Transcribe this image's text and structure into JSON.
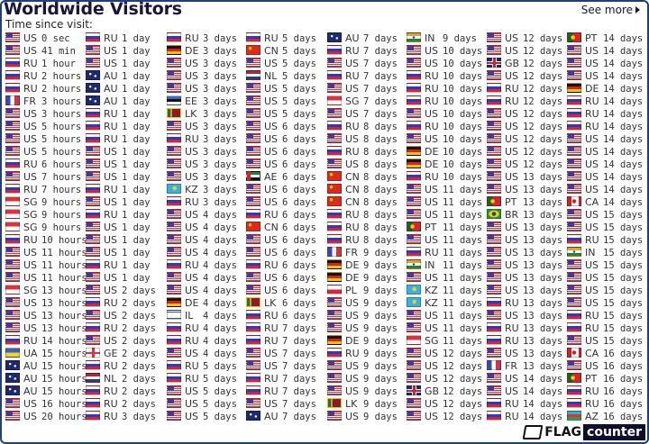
{
  "header": {
    "title": "Worldwide Visitors",
    "subtitle": "Time since visit:",
    "see_more": "See more"
  },
  "logo": {
    "text_flag": "FLAG",
    "text_counter": "counter"
  },
  "columns": [
    [
      [
        "US",
        "0 sec"
      ],
      [
        "US",
        "41 min"
      ],
      [
        "RU",
        "1 hour"
      ],
      [
        "RU",
        "2 hours"
      ],
      [
        "RU",
        "2 hours"
      ],
      [
        "FR",
        "3 hours"
      ],
      [
        "US",
        "3 hours"
      ],
      [
        "US",
        "5 hours"
      ],
      [
        "US",
        "5 hours"
      ],
      [
        "US",
        "5 hours"
      ],
      [
        "RU",
        "6 hours"
      ],
      [
        "US",
        "7 hours"
      ],
      [
        "RU",
        "7 hours"
      ],
      [
        "SG",
        "9 hours"
      ],
      [
        "SG",
        "9 hours"
      ],
      [
        "SG",
        "9 hours"
      ],
      [
        "RU",
        "10 hours"
      ],
      [
        "US",
        "11 hours"
      ],
      [
        "US",
        "11 hours"
      ],
      [
        "US",
        "11 hours"
      ],
      [
        "SG",
        "13 hours"
      ],
      [
        "US",
        "13 hours"
      ],
      [
        "US",
        "13 hours"
      ],
      [
        "US",
        "13 hours"
      ],
      [
        "RU",
        "14 hours"
      ],
      [
        "UA",
        "15 hours"
      ],
      [
        "AU",
        "15 hours"
      ],
      [
        "AU",
        "15 hours"
      ],
      [
        "AU",
        "15 hours"
      ],
      [
        "US",
        "16 hours"
      ],
      [
        "US",
        "20 hours"
      ]
    ],
    [
      [
        "RU",
        "1 day"
      ],
      [
        "US",
        "1 day"
      ],
      [
        "US",
        "1 day"
      ],
      [
        "AU",
        "1 day"
      ],
      [
        "AU",
        "1 day"
      ],
      [
        "AU",
        "1 day"
      ],
      [
        "RU",
        "1 day"
      ],
      [
        "RU",
        "1 day"
      ],
      [
        "RU",
        "1 day"
      ],
      [
        "US",
        "1 day"
      ],
      [
        "US",
        "1 day"
      ],
      [
        "US",
        "1 day"
      ],
      [
        "RU",
        "1 day"
      ],
      [
        "US",
        "1 day"
      ],
      [
        "RU",
        "1 day"
      ],
      [
        "US",
        "1 day"
      ],
      [
        "US",
        "1 day"
      ],
      [
        "US",
        "1 day"
      ],
      [
        "RU",
        "1 day"
      ],
      [
        "US",
        "1 day"
      ],
      [
        "US",
        "2 days"
      ],
      [
        "RU",
        "2 days"
      ],
      [
        "US",
        "2 days"
      ],
      [
        "RU",
        "2 days"
      ],
      [
        "US",
        "2 days"
      ],
      [
        "GE",
        "2 days"
      ],
      [
        "RU",
        "2 days"
      ],
      [
        "NL",
        "2 days"
      ],
      [
        "RU",
        "2 days"
      ],
      [
        "RU",
        "2 days"
      ],
      [
        "RU",
        "3 days"
      ]
    ],
    [
      [
        "RU",
        "3 days"
      ],
      [
        "DE",
        "3 days"
      ],
      [
        "US",
        "3 days"
      ],
      [
        "US",
        "3 days"
      ],
      [
        "US",
        "3 days"
      ],
      [
        "EE",
        "3 days"
      ],
      [
        "LK",
        "3 days"
      ],
      [
        "US",
        "3 days"
      ],
      [
        "RU",
        "3 days"
      ],
      [
        "US",
        "3 days"
      ],
      [
        "US",
        "3 days"
      ],
      [
        "US",
        "3 days"
      ],
      [
        "KZ",
        "3 days"
      ],
      [
        "RU",
        "3 days"
      ],
      [
        "US",
        "4 days"
      ],
      [
        "US",
        "4 days"
      ],
      [
        "US",
        "4 days"
      ],
      [
        "US",
        "4 days"
      ],
      [
        "RU",
        "4 days"
      ],
      [
        "US",
        "4 days"
      ],
      [
        "US",
        "4 days"
      ],
      [
        "DE",
        "4 days"
      ],
      [
        "IL",
        "4 days"
      ],
      [
        "RU",
        "4 days"
      ],
      [
        "RU",
        "4 days"
      ],
      [
        "US",
        "4 days"
      ],
      [
        "RU",
        "5 days"
      ],
      [
        "RU",
        "5 days"
      ],
      [
        "US",
        "5 days"
      ],
      [
        "US",
        "5 days"
      ],
      [
        "US",
        "5 days"
      ]
    ],
    [
      [
        "RU",
        "5 days"
      ],
      [
        "CN",
        "5 days"
      ],
      [
        "US",
        "5 days"
      ],
      [
        "NL",
        "5 days"
      ],
      [
        "US",
        "5 days"
      ],
      [
        "US",
        "5 days"
      ],
      [
        "US",
        "5 days"
      ],
      [
        "US",
        "6 days"
      ],
      [
        "US",
        "6 days"
      ],
      [
        "US",
        "6 days"
      ],
      [
        "US",
        "6 days"
      ],
      [
        "AE",
        "6 days"
      ],
      [
        "US",
        "6 days"
      ],
      [
        "US",
        "6 days"
      ],
      [
        "RU",
        "6 days"
      ],
      [
        "CN",
        "6 days"
      ],
      [
        "US",
        "6 days"
      ],
      [
        "US",
        "6 days"
      ],
      [
        "RU",
        "6 days"
      ],
      [
        "US",
        "6 days"
      ],
      [
        "US",
        "6 days"
      ],
      [
        "LK",
        "6 days"
      ],
      [
        "RU",
        "6 days"
      ],
      [
        "RU",
        "7 days"
      ],
      [
        "RU",
        "7 days"
      ],
      [
        "US",
        "7 days"
      ],
      [
        "US",
        "7 days"
      ],
      [
        "RU",
        "7 days"
      ],
      [
        "RU",
        "7 days"
      ],
      [
        "US",
        "7 days"
      ],
      [
        "AU",
        "7 days"
      ]
    ],
    [
      [
        "AU",
        "7 days"
      ],
      [
        "RU",
        "7 days"
      ],
      [
        "US",
        "7 days"
      ],
      [
        "RU",
        "7 days"
      ],
      [
        "US",
        "7 days"
      ],
      [
        "SG",
        "7 days"
      ],
      [
        "US",
        "7 days"
      ],
      [
        "RU",
        "8 days"
      ],
      [
        "US",
        "8 days"
      ],
      [
        "RU",
        "8 days"
      ],
      [
        "US",
        "8 days"
      ],
      [
        "CN",
        "8 days"
      ],
      [
        "CN",
        "8 days"
      ],
      [
        "CN",
        "8 days"
      ],
      [
        "RU",
        "8 days"
      ],
      [
        "RU",
        "8 days"
      ],
      [
        "RU",
        "8 days"
      ],
      [
        "FR",
        "9 days"
      ],
      [
        "DE",
        "9 days"
      ],
      [
        "DE",
        "9 days"
      ],
      [
        "PL",
        "9 days"
      ],
      [
        "US",
        "9 days"
      ],
      [
        "US",
        "9 days"
      ],
      [
        "US",
        "9 days"
      ],
      [
        "DE",
        "9 days"
      ],
      [
        "RU",
        "9 days"
      ],
      [
        "US",
        "9 days"
      ],
      [
        "US",
        "9 days"
      ],
      [
        "US",
        "9 days"
      ],
      [
        "LK",
        "9 days"
      ],
      [
        "US",
        "9 days"
      ]
    ],
    [
      [
        "IN",
        "9 days"
      ],
      [
        "US",
        "10 days"
      ],
      [
        "US",
        "10 days"
      ],
      [
        "RU",
        "10 days"
      ],
      [
        "RU",
        "10 days"
      ],
      [
        "RU",
        "10 days"
      ],
      [
        "US",
        "10 days"
      ],
      [
        "RU",
        "10 days"
      ],
      [
        "US",
        "10 days"
      ],
      [
        "DE",
        "10 days"
      ],
      [
        "DE",
        "10 days"
      ],
      [
        "RU",
        "10 days"
      ],
      [
        "US",
        "11 days"
      ],
      [
        "US",
        "11 days"
      ],
      [
        "US",
        "11 days"
      ],
      [
        "PT",
        "11 days"
      ],
      [
        "US",
        "11 days"
      ],
      [
        "RU",
        "11 days"
      ],
      [
        "IN",
        "11 days"
      ],
      [
        "US",
        "11 days"
      ],
      [
        "KZ",
        "11 days"
      ],
      [
        "KZ",
        "11 days"
      ],
      [
        "US",
        "11 days"
      ],
      [
        "US",
        "11 days"
      ],
      [
        "SG",
        "11 days"
      ],
      [
        "US",
        "12 days"
      ],
      [
        "US",
        "12 days"
      ],
      [
        "US",
        "12 days"
      ],
      [
        "GB",
        "12 days"
      ],
      [
        "US",
        "12 days"
      ],
      [
        "US",
        "12 days"
      ]
    ],
    [
      [
        "US",
        "12 days"
      ],
      [
        "US",
        "12 days"
      ],
      [
        "GB",
        "12 days"
      ],
      [
        "US",
        "12 days"
      ],
      [
        "RU",
        "12 days"
      ],
      [
        "RU",
        "12 days"
      ],
      [
        "US",
        "12 days"
      ],
      [
        "US",
        "12 days"
      ],
      [
        "US",
        "12 days"
      ],
      [
        "US",
        "12 days"
      ],
      [
        "US",
        "12 days"
      ],
      [
        "US",
        "13 days"
      ],
      [
        "US",
        "13 days"
      ],
      [
        "PT",
        "13 days"
      ],
      [
        "BR",
        "13 days"
      ],
      [
        "US",
        "13 days"
      ],
      [
        "US",
        "13 days"
      ],
      [
        "US",
        "13 days"
      ],
      [
        "US",
        "13 days"
      ],
      [
        "US",
        "13 days"
      ],
      [
        "US",
        "13 days"
      ],
      [
        "RU",
        "13 days"
      ],
      [
        "US",
        "13 days"
      ],
      [
        "RU",
        "13 days"
      ],
      [
        "RU",
        "13 days"
      ],
      [
        "US",
        "13 days"
      ],
      [
        "FR",
        "13 days"
      ],
      [
        "US",
        "14 days"
      ],
      [
        "US",
        "14 days"
      ],
      [
        "RU",
        "14 days"
      ],
      [
        "RU",
        "14 days"
      ]
    ],
    [
      [
        "PT",
        "14 days"
      ],
      [
        "US",
        "14 days"
      ],
      [
        "US",
        "14 days"
      ],
      [
        "US",
        "14 days"
      ],
      [
        "DE",
        "14 days"
      ],
      [
        "RU",
        "14 days"
      ],
      [
        "RU",
        "14 days"
      ],
      [
        "RU",
        "14 days"
      ],
      [
        "US",
        "14 days"
      ],
      [
        "US",
        "14 days"
      ],
      [
        "US",
        "14 days"
      ],
      [
        "US",
        "14 days"
      ],
      [
        "US",
        "14 days"
      ],
      [
        "CA",
        "14 days"
      ],
      [
        "US",
        "15 days"
      ],
      [
        "US",
        "15 days"
      ],
      [
        "RU",
        "15 days"
      ],
      [
        "IN",
        "15 days"
      ],
      [
        "US",
        "15 days"
      ],
      [
        "US",
        "15 days"
      ],
      [
        "US",
        "15 days"
      ],
      [
        "US",
        "15 days"
      ],
      [
        "RU",
        "15 days"
      ],
      [
        "RU",
        "15 days"
      ],
      [
        "US",
        "15 days"
      ],
      [
        "CA",
        "16 days"
      ],
      [
        "US",
        "16 days"
      ],
      [
        "PT",
        "16 days"
      ],
      [
        "RU",
        "16 days"
      ],
      [
        "RU",
        "16 days"
      ],
      [
        "AZ",
        "16 days"
      ]
    ]
  ]
}
